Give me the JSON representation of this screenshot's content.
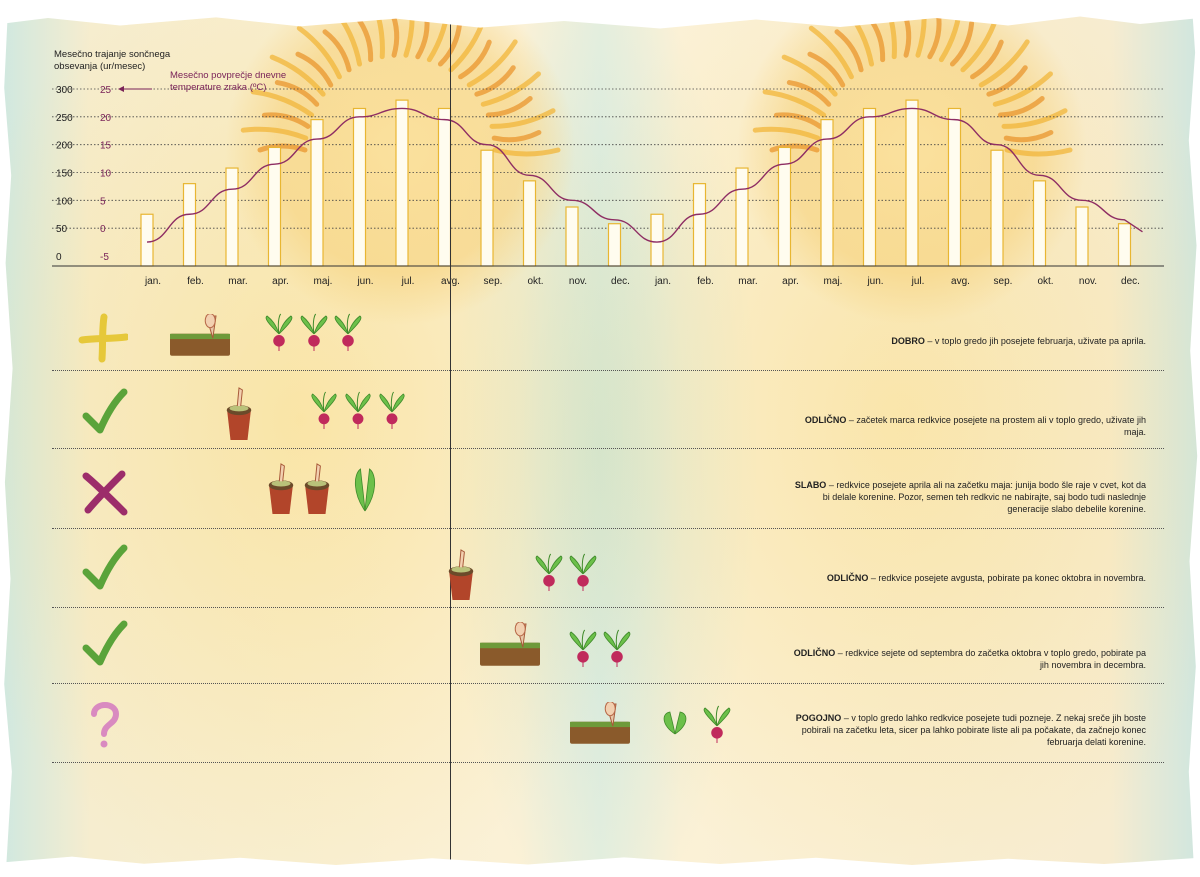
{
  "chart_data": {
    "type": "bar",
    "ylabel": "Mesečno trajanje sončnega obsevanja (ur/mesec)",
    "y2label": "Mesečno povprečje dnevne temperature zraka (ºC)",
    "yticks": [
      "300",
      "250",
      "200",
      "150",
      "100",
      "50",
      "0"
    ],
    "y2ticks": [
      "25",
      "20",
      "15",
      "10",
      "5",
      "0",
      "-5"
    ],
    "ylim": [
      0,
      300
    ],
    "y2lim": [
      -5,
      25
    ],
    "categories": [
      "jan.",
      "feb.",
      "mar.",
      "apr.",
      "maj.",
      "jun.",
      "jul.",
      "avg.",
      "sep.",
      "okt.",
      "nov.",
      "dec.",
      "jan.",
      "feb.",
      "mar.",
      "apr.",
      "maj.",
      "jun.",
      "jul.",
      "avg.",
      "sep.",
      "okt.",
      "nov.",
      "dec."
    ],
    "series": [
      {
        "name": "Mesečno trajanje sončnega obsevanja (ur/mesec)",
        "type": "bar",
        "values": [
          75,
          130,
          158,
          195,
          245,
          265,
          280,
          265,
          190,
          135,
          88,
          58,
          75,
          130,
          158,
          195,
          245,
          265,
          280,
          265,
          190,
          135,
          88,
          58
        ]
      },
      {
        "name": "Mesečno povprečje dnevne temperature zraka (ºC)",
        "type": "line",
        "values": [
          -2.5,
          2.5,
          7,
          11.5,
          16,
          20,
          21.5,
          19.5,
          15,
          9.5,
          5,
          1.5,
          -2.5,
          2.5,
          7,
          11.5,
          16,
          20,
          21.5,
          19.5,
          15,
          9.5,
          5,
          1.5
        ]
      }
    ],
    "colors": {
      "bar_fill": "#fffcef",
      "bar_edge": "#e8b632",
      "line": "#8e2d63"
    }
  },
  "rows": [
    {
      "symbol": "plus",
      "label": "DOBRO",
      "text": " – v toplo gredo jih posejete februarja, uživate pa aprila."
    },
    {
      "symbol": "check",
      "label": "ODLIČNO",
      "text": " – začetek marca redkvice posejete na prostem ali v toplo gredo, uživate jih maja."
    },
    {
      "symbol": "cross",
      "label": "SLABO",
      "text": " – redkvice posejete aprila ali na začetku maja: junija bodo šle raje v cvet, kot da bi delale korenine. Pozor, semen teh redkvic ne nabirajte, saj bodo tudi naslednje generacije slabo debelile korenine."
    },
    {
      "symbol": "check",
      "label": "ODLIČNO",
      "text": " – redkvice posejete avgusta, pobirate pa konec oktobra in novembra."
    },
    {
      "symbol": "check",
      "label": "ODLIČNO",
      "text": " – redkvice sejete od septembra do začetka oktobra v toplo gredo, pobirate pa jih novembra in decembra."
    },
    {
      "symbol": "question",
      "label": "POGOJNO",
      "text": " – v toplo gredo lahko redkvice posejete tudi pozneje. Z nekaj sreče jih boste pobirali na začetku leta, sicer pa lahko pobirate liste ali pa počakate, da začnejo konec februarja delati korenine."
    }
  ],
  "symbol_colors": {
    "plus": "#e6c83a",
    "check": "#5aa33a",
    "cross": "#9c2d6a",
    "question": "#d98ac0"
  }
}
